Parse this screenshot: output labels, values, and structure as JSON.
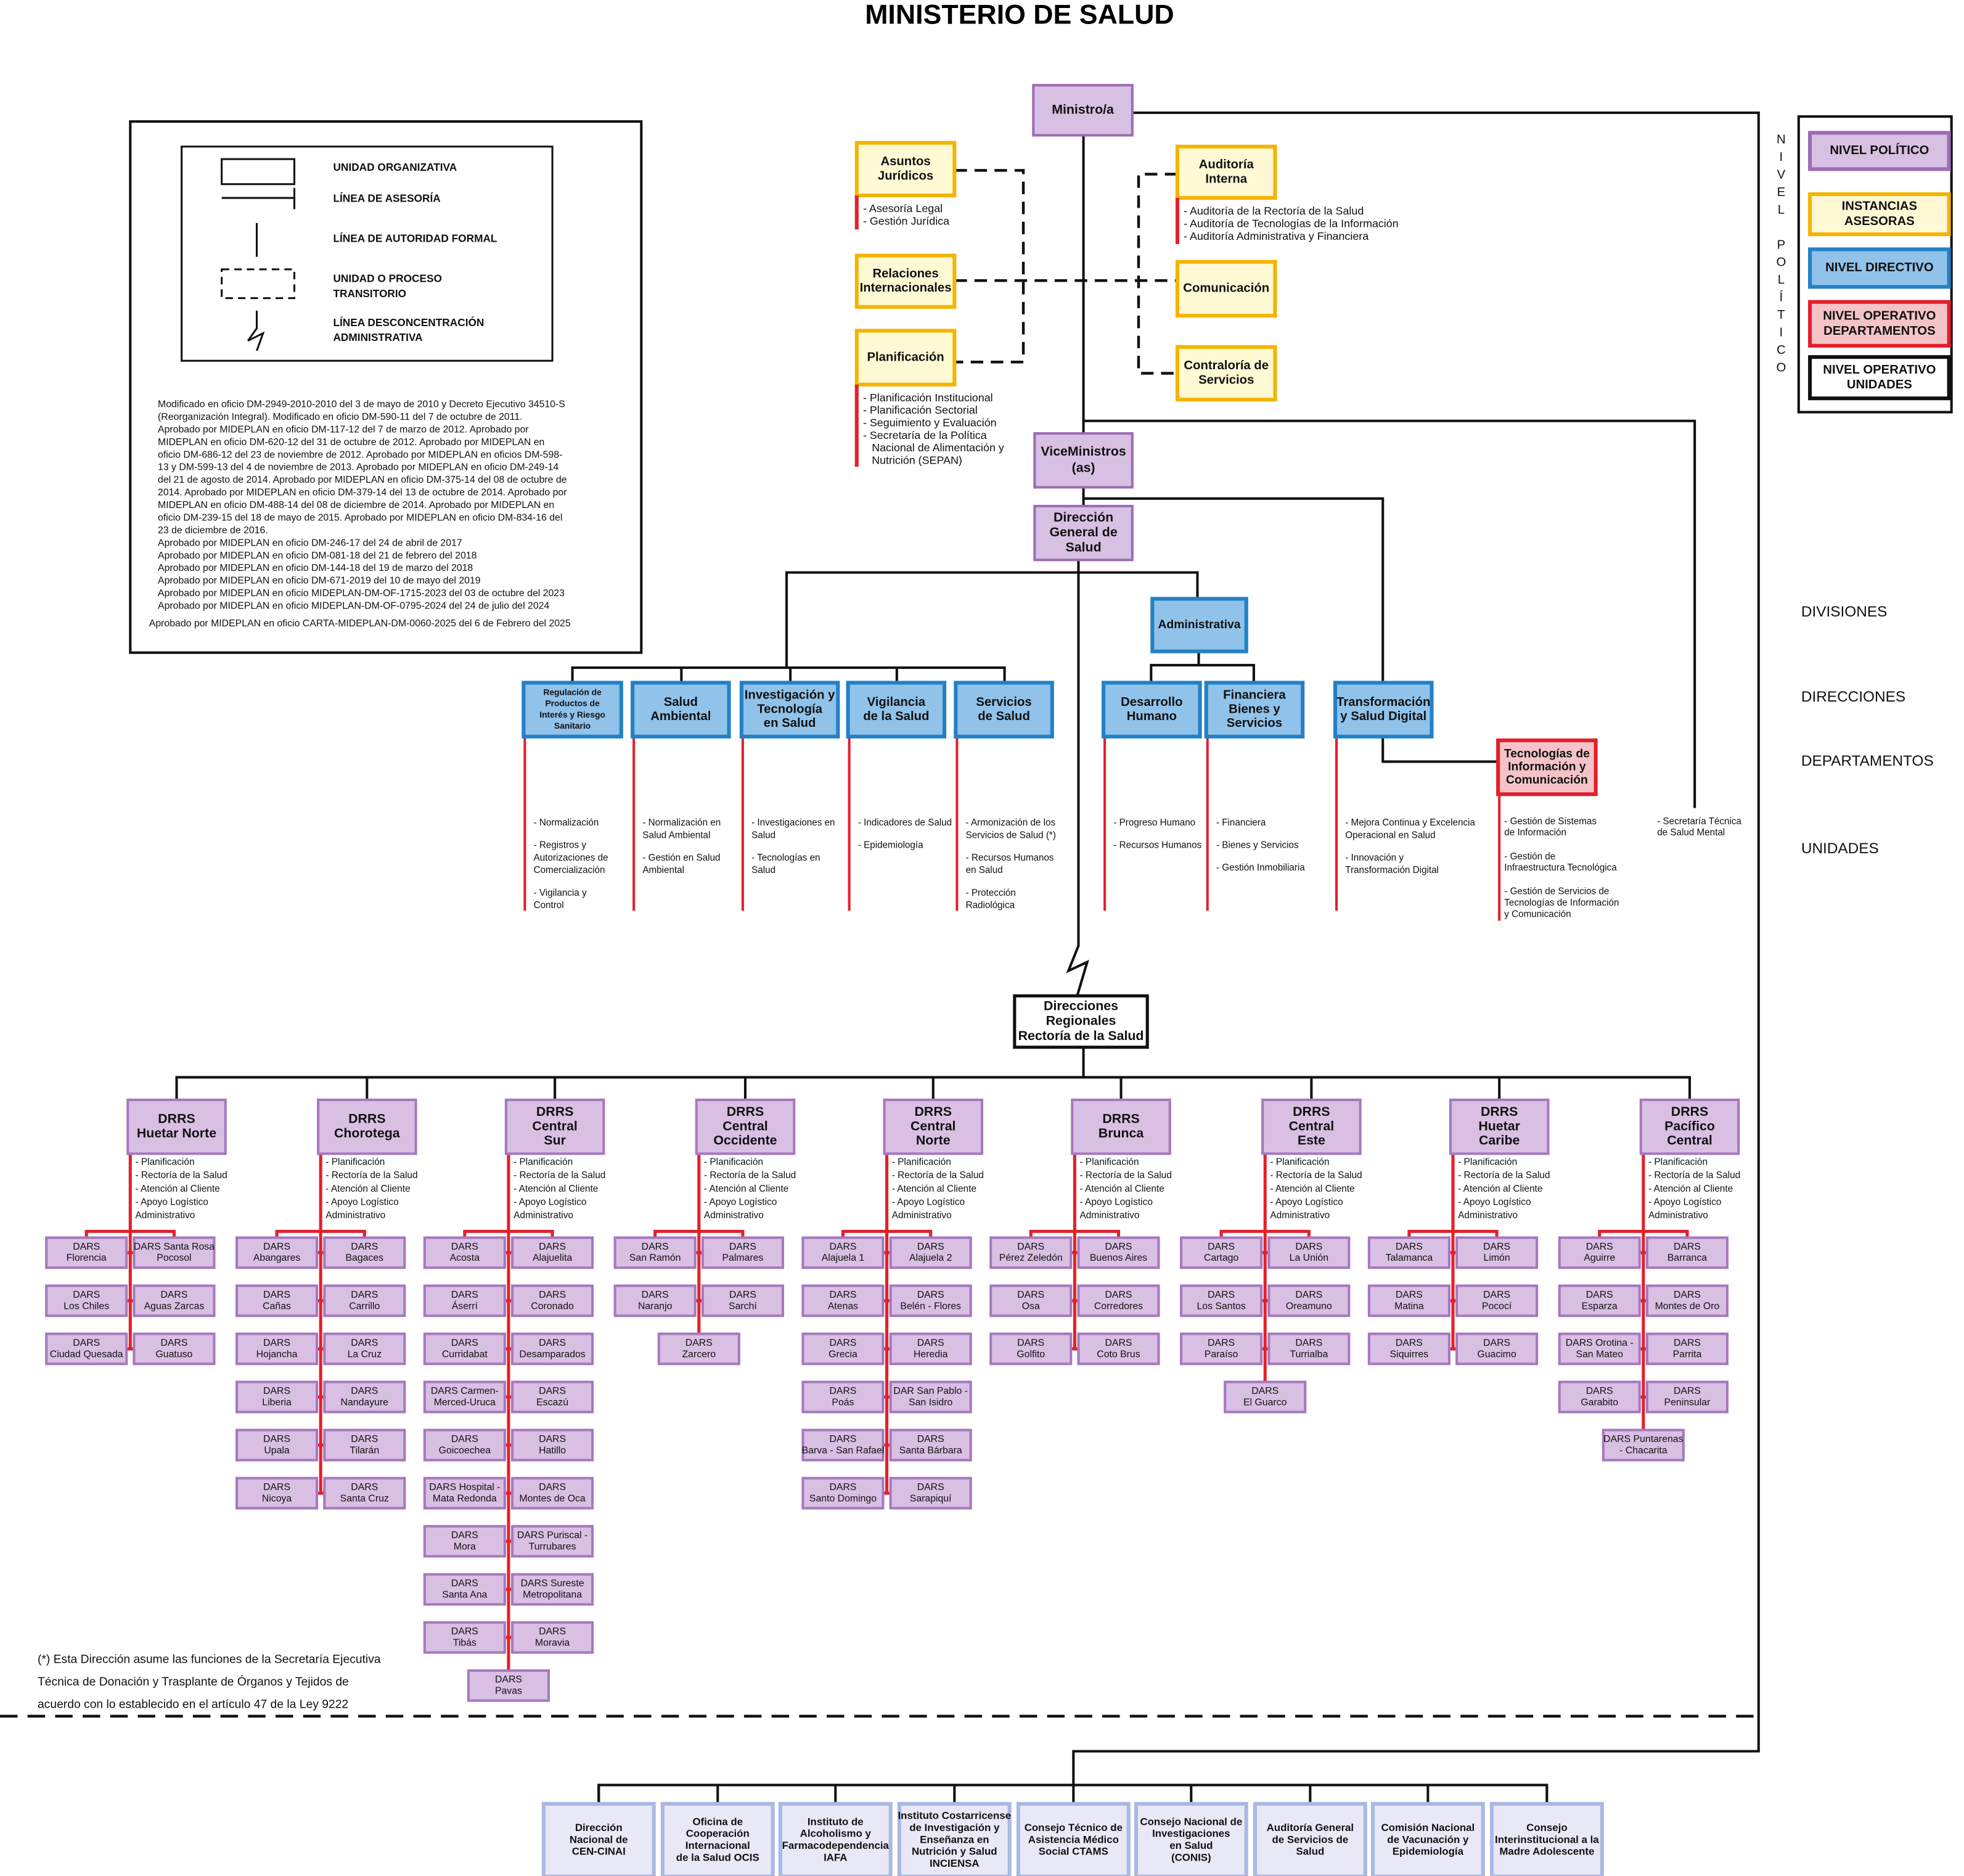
{
  "title": "MINISTERIO DE  SALUD",
  "legend": {
    "items": [
      [
        "UNIDAD ORGANIZATIVA"
      ],
      [
        "LÍNEA DE ASESORÍA"
      ],
      [
        "LÍNEA DE AUTORIDAD FORMAL"
      ],
      [
        "UNIDAD O PROCESO",
        "TRANSITORIO"
      ],
      [
        "LÍNEA DESCONCENTRACIÓN",
        "ADMINISTRATIVA"
      ]
    ],
    "notes": [
      "Modificado en oficio DM-2949-2010-2010 del 3 de mayo de 2010 y Decreto Ejecutivo 34510-S",
      "(Reorganización Integral). Modificado en oficio DM-590-11 del 7 de octubre de 2011.",
      "Aprobado por MIDEPLAN en oficio DM-117-12 del 7 de marzo de 2012. Aprobado por",
      "MIDEPLAN en oficio DM-620-12 del 31 de octubre de 2012. Aprobado por MIDEPLAN en",
      "oficio DM-686-12 del 23 de noviembre de 2012. Aprobado por MIDEPLAN en oficios DM-598-",
      "13 y DM-599-13 del 4 de noviembre de 2013. Aprobado por MIDEPLAN en oficio DM-249-14",
      "del 21 de agosto de 2014. Aprobado por MIDEPLAN en oficio DM-375-14 del 08 de octubre de",
      "2014. Aprobado por MIDEPLAN en oficio DM-379-14 del 13 de octubre de 2014. Aprobado por",
      "MIDEPLAN en oficio DM-488-14 del 08 de diciembre de 2014. Aprobado por MIDEPLAN en",
      "oficio DM-239-15 del 18 de mayo de 2015. Aprobado por MIDEPLAN en oficio DM-834-16 del",
      "23 de diciembre de 2016.",
      "Aprobado por MIDEPLAN en oficio DM-246-17 del 24 de abril de 2017",
      "Aprobado por MIDEPLAN en oficio DM-081-18 del 21 de febrero del 2018",
      "Aprobado por MIDEPLAN en oficio DM-144-18 del 19 de marzo del 2018",
      "Aprobado por MIDEPLAN en oficio DM-671-2019 del 10 de mayo del 2019",
      "Aprobado por MIDEPLAN en oficio MIDEPLAN-DM-OF-1715-2023 del 03 de octubre del 2023",
      "Aprobado por MIDEPLAN en oficio MIDEPLAN-DM-OF-0795-2024 del 24 de julio del 2024"
    ],
    "approval": "Aprobado por MIDEPLAN en oficio  CARTA-MIDEPLAN-DM-0060-2025 del 6 de Febrero del 2025"
  },
  "levels": {
    "side_label": "NIVEL POLÍTICO",
    "items": [
      [
        "NIVEL POLÍTICO"
      ],
      [
        "INSTANCIAS",
        "ASESORAS"
      ],
      [
        "NIVEL DIRECTIVO"
      ],
      [
        "NIVEL OPERATIVO",
        "DEPARTAMENTOS"
      ],
      [
        "NIVEL OPERATIVO",
        "UNIDADES"
      ]
    ]
  },
  "row_labels": [
    "DIVISIONES",
    "DIRECCIONES",
    "DEPARTAMENTOS",
    "UNIDADES"
  ],
  "ministro": [
    "Ministro/a"
  ],
  "advisory": [
    {
      "label": [
        "Asuntos",
        "Jurídicos"
      ],
      "items": [
        "- Asesoría Legal",
        "- Gestión Jurídica"
      ]
    },
    {
      "label": [
        "Relaciones",
        "Internacionales"
      ],
      "items": []
    },
    {
      "label": [
        "Planificación"
      ],
      "items": [
        "- Planificación Institucional",
        "- Planificación Sectorial",
        "- Seguimiento y Evaluación",
        "- Secretaría de la Política",
        "Nacional de Alimentación y",
        "Nutrición (SEPAN)"
      ]
    },
    {
      "label": [
        "Auditoría",
        "Interna"
      ],
      "items": [
        "- Auditoría de la Rectoría de la Salud",
        "- Auditoría de Tecnologías de la Información",
        "- Auditoría Administrativa y Financiera"
      ]
    },
    {
      "label": [
        "Comunicación"
      ],
      "items": []
    },
    {
      "label": [
        "Contraloría de",
        "Servicios"
      ],
      "items": []
    }
  ],
  "vice": [
    "ViceMinistros",
    "(as)"
  ],
  "general": [
    "Dirección",
    "General de",
    "Salud"
  ],
  "administrativa": [
    "Administrativa"
  ],
  "directions": [
    {
      "label": [
        "Regulación de",
        "Productos de",
        "Interés y Riesgo",
        "Sanitario"
      ],
      "items": [
        [
          "- Normalización"
        ],
        [
          "- Registros y",
          "Autorizaciones de",
          "Comercialización"
        ],
        [
          "- Vigilancia y",
          "Control"
        ]
      ]
    },
    {
      "label": [
        "Salud",
        "Ambiental"
      ],
      "items": [
        [
          "- Normalización en",
          "Salud Ambiental"
        ],
        [
          "- Gestión en Salud",
          "Ambiental"
        ]
      ]
    },
    {
      "label": [
        "Investigación y",
        "Tecnología",
        "en Salud"
      ],
      "items": [
        [
          "- Investigaciones en",
          "Salud"
        ],
        [
          "- Tecnologías en",
          "Salud"
        ]
      ]
    },
    {
      "label": [
        "Vigilancia",
        "de la Salud"
      ],
      "items": [
        [
          "- Indicadores de Salud"
        ],
        [
          "- Epidemiología"
        ]
      ]
    },
    {
      "label": [
        "Servicios",
        "de Salud"
      ],
      "items": [
        [
          "- Armonización de los",
          "Servicios de Salud (*)"
        ],
        [
          "- Recursos Humanos",
          "en Salud"
        ],
        [
          "- Protección",
          "Radiológica"
        ]
      ]
    },
    {
      "label": [
        "Desarrollo",
        "Humano"
      ],
      "items": [
        [
          "- Progreso Humano"
        ],
        [
          "- Recursos Humanos"
        ]
      ]
    },
    {
      "label": [
        "Financiera",
        "Bienes y",
        "Servicios"
      ],
      "items": [
        [
          "- Financiera"
        ],
        [
          "- Bienes y Servicios"
        ],
        [
          "- Gestión Inmobiliaria"
        ]
      ]
    },
    {
      "label": [
        "Transformación",
        "y Salud Digital"
      ],
      "items": [
        [
          "- Mejora Continua y Excelencia",
          "Operacional en Salud"
        ],
        [
          "- Innovación y",
          "Transformación Digital"
        ]
      ]
    }
  ],
  "tic": {
    "label": [
      "Tecnologías de",
      "Información y",
      "Comunicación"
    ],
    "items": [
      [
        "- Gestión de Sistemas",
        "de Información"
      ],
      [
        "- Gestión de",
        "Infraestructura Tecnológica"
      ],
      [
        "- Gestión de Servicios de",
        "Tecnologías de Información",
        "y Comunicación"
      ]
    ]
  },
  "secretaria": [
    "- Secretaría Técnica",
    "de Salud Mental"
  ],
  "regional": [
    "Direcciones",
    "Regionales",
    "Rectoría de la Salud"
  ],
  "regions": [
    {
      "name": [
        "DRRS",
        "Huetar Norte"
      ],
      "functions": [
        "- Planificación",
        "- Rectoría de la Salud",
        "- Atención al Cliente",
        "- Apoyo Logístico",
        "Administrativo"
      ],
      "dars": [
        [
          "DARS",
          "Florencia"
        ],
        [
          "DARS Santa Rosa",
          "Pocosol"
        ],
        [
          "DARS",
          "Los Chiles"
        ],
        [
          "DARS",
          "Aguas Zarcas"
        ],
        [
          "DARS",
          "Ciudad Quesada"
        ],
        [
          "DARS",
          "Guatuso"
        ]
      ]
    },
    {
      "name": [
        "DRRS",
        "Chorotega"
      ],
      "functions": [
        "- Planificación",
        "- Rectoría de la Salud",
        "- Atención al Cliente",
        "- Apoyo Logístico",
        "Administrativo"
      ],
      "dars": [
        [
          "DARS",
          "Abangares"
        ],
        [
          "DARS",
          "Bagaces"
        ],
        [
          "DARS",
          "Cañas"
        ],
        [
          "DARS",
          "Carrillo"
        ],
        [
          "DARS",
          "Hojancha"
        ],
        [
          "DARS",
          "La Cruz"
        ],
        [
          "DARS",
          "Liberia"
        ],
        [
          "DARS",
          "Nandayure"
        ],
        [
          "DARS",
          "Upala"
        ],
        [
          "DARS",
          "Tilarán"
        ],
        [
          "DARS",
          "Nicoya"
        ],
        [
          "DARS",
          "Santa Cruz"
        ]
      ]
    },
    {
      "name": [
        "DRRS",
        "Central",
        "Sur"
      ],
      "functions": [
        "- Planificación",
        "- Rectoría de la Salud",
        "- Atención al Cliente",
        "- Apoyo Logístico",
        "Administrativo"
      ],
      "dars": [
        [
          "DARS",
          "Acosta"
        ],
        [
          "DARS",
          "Alajuelita"
        ],
        [
          "DARS",
          "Áserrí"
        ],
        [
          "DARS",
          "Coronado"
        ],
        [
          "DARS",
          "Curridabat"
        ],
        [
          "DARS",
          "Desamparados"
        ],
        [
          "DARS Carmen-",
          "Merced-Uruca"
        ],
        [
          "DARS",
          "Escazú"
        ],
        [
          "DARS",
          "Goicoechea"
        ],
        [
          "DARS",
          "Hatillo"
        ],
        [
          "DARS Hospital -",
          "Mata Redonda"
        ],
        [
          "DARS",
          "Montes de Oca"
        ],
        [
          "DARS",
          "Mora"
        ],
        [
          "DARS Puriscal -",
          "Turrubares"
        ],
        [
          "DARS",
          "Santa Ana"
        ],
        [
          "DARS Sureste",
          "Metropolitana"
        ],
        [
          "DARS",
          "Tibás"
        ],
        [
          "DARS",
          "Moravia"
        ],
        [
          "DARS",
          "Pavas"
        ]
      ]
    },
    {
      "name": [
        "DRRS",
        "Central",
        "Occidente"
      ],
      "functions": [
        "- Planificación",
        "- Rectoría de la Salud",
        "- Atención al Cliente",
        "- Apoyo Logístico",
        "Administrativo"
      ],
      "dars": [
        [
          "DARS",
          "San Ramón"
        ],
        [
          "DARS",
          "Palmares"
        ],
        [
          "DARS",
          "Naranjo"
        ],
        [
          "DARS",
          "Sarchí"
        ],
        [
          "DARS",
          "Zarcero"
        ]
      ]
    },
    {
      "name": [
        "DRRS",
        "Central",
        "Norte"
      ],
      "functions": [
        "- Planificación",
        "- Rectoría de la Salud",
        "- Atención al Cliente",
        "- Apoyo Logístico",
        "Administrativo"
      ],
      "dars": [
        [
          "DARS",
          "Alajuela 1"
        ],
        [
          "DARS",
          "Alajuela 2"
        ],
        [
          "DARS",
          "Atenas"
        ],
        [
          "DARS",
          "Belén - Flores"
        ],
        [
          "DARS",
          "Grecia"
        ],
        [
          "DARS",
          "Heredia"
        ],
        [
          "DARS",
          "Poás"
        ],
        [
          "DAR San Pablo -",
          "San Isidro"
        ],
        [
          "DARS",
          "Barva - San Rafael"
        ],
        [
          "DARS",
          "Santa Bárbara"
        ],
        [
          "DARS",
          "Santo Domingo"
        ],
        [
          "DARS",
          "Sarapiquí"
        ]
      ]
    },
    {
      "name": [
        "DRRS",
        "Brunca"
      ],
      "functions": [
        "- Planificación",
        "- Rectoría de la Salud",
        "- Atención al Cliente",
        "- Apoyo Logístico",
        "Administrativo"
      ],
      "dars": [
        [
          "DARS",
          "Pérez Zeledón"
        ],
        [
          "DARS",
          "Buenos Aires"
        ],
        [
          "DARS",
          "Osa"
        ],
        [
          "DARS",
          "Corredores"
        ],
        [
          "DARS",
          "Golfito"
        ],
        [
          "DARS",
          "Coto Brus"
        ]
      ]
    },
    {
      "name": [
        "DRRS",
        "Central",
        "Este"
      ],
      "functions": [
        "- Planificación",
        "- Rectoría de la Salud",
        "- Atención al Cliente",
        "- Apoyo Logístico",
        "Administrativo"
      ],
      "dars": [
        [
          "DARS",
          "Cartago"
        ],
        [
          "DARS",
          "La Unión"
        ],
        [
          "DARS",
          "Los Santos"
        ],
        [
          "DARS",
          "Oreamuno"
        ],
        [
          "DARS",
          "Paraíso"
        ],
        [
          "DARS",
          "Turrialba"
        ],
        [
          "DARS",
          "El Guarco"
        ]
      ]
    },
    {
      "name": [
        "DRRS",
        "Huetar",
        "Caribe"
      ],
      "functions": [
        "- Planificación",
        "- Rectoría de la Salud",
        "- Atención al Cliente",
        "- Apoyo Logístico",
        "Administrativo"
      ],
      "dars": [
        [
          "DARS",
          "Talamanca"
        ],
        [
          "DARS",
          "Limón"
        ],
        [
          "DARS",
          "Matina"
        ],
        [
          "DARS",
          "Pococí"
        ],
        [
          "DARS",
          "Siquirres"
        ],
        [
          "DARS",
          "Guacimo"
        ]
      ]
    },
    {
      "name": [
        "DRRS",
        "Pacífico",
        "Central"
      ],
      "functions": [
        "- Planificación",
        "- Rectoría de la Salud",
        "- Atención al Cliente",
        "- Apoyo Logístico",
        "Administrativo"
      ],
      "dars": [
        [
          "DARS",
          "Aguirre"
        ],
        [
          "DARS",
          "Barranca"
        ],
        [
          "DARS",
          "Esparza"
        ],
        [
          "DARS",
          "Montes de Oro"
        ],
        [
          "DARS Orotina -",
          "San Mateo"
        ],
        [
          "DARS",
          "Parrita"
        ],
        [
          "DARS",
          "Garabito"
        ],
        [
          "DARS",
          "Peninsular"
        ],
        [
          "DARS Puntarenas",
          "- Chacarita"
        ]
      ]
    }
  ],
  "footnote": [
    "(*)  Esta  Dirección asume las funciones de la Secretaría Ejecutiva",
    "Técnica de  Donación y Trasplante de Órganos y Tejidos de",
    "acuerdo con lo establecido en el artículo 47 de la Ley 9222"
  ],
  "councils": [
    [
      "Dirección",
      "Nacional de",
      "CEN-CINAI"
    ],
    [
      "Oficina de",
      "Cooperación",
      "Internacional",
      "de la Salud OCIS"
    ],
    [
      "Instituto de",
      "Alcoholismo y",
      "Farmacodependencia",
      "IAFA"
    ],
    [
      "Instituto Costarricense",
      "de Investigación y",
      "Enseñanza en",
      "Nutrición y Salud",
      "INCIENSA"
    ],
    [
      "Consejo Técnico de",
      "Asistencia Médico",
      "Social CTAMS"
    ],
    [
      "Consejo Nacional de",
      "Investigaciones",
      "en Salud",
      "(CONIS)"
    ],
    [
      "Auditoría General",
      "de Servicios de",
      "Salud"
    ],
    [
      "Comisión Nacional",
      "de Vacunación y",
      "Epidemiología"
    ],
    [
      "Consejo",
      "Interinstitucional a la",
      "Madre Adolescente"
    ]
  ]
}
